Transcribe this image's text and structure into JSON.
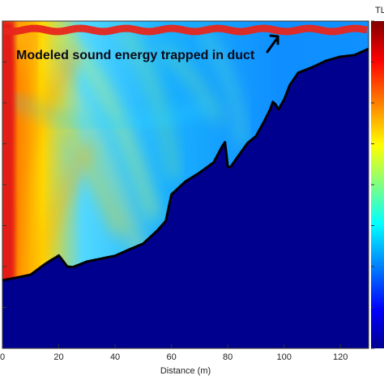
{
  "chart_data": {
    "type": "heatmap",
    "title": "",
    "xlabel": "Distance (m)",
    "ylabel": "",
    "xlim": [
      0,
      130
    ],
    "x_ticks": [
      0,
      20,
      40,
      60,
      80,
      100,
      120
    ],
    "grid": false,
    "colormap": [
      "#00008f",
      "#0000ff",
      "#0080ff",
      "#00ffff",
      "#80ff80",
      "#ffff00",
      "#ff8000",
      "#ff0000",
      "#800000"
    ],
    "colorbar": {
      "title": "TL",
      "position": "right"
    },
    "seabed_color": "#00008f",
    "duct_energy_color": "#e8261c",
    "annotation": {
      "text": "Modeled sound energy trapped in duct",
      "arrow_target_x": 98
    },
    "bottom_profile": {
      "x": [
        0,
        5,
        10,
        15,
        17,
        19,
        20,
        21,
        23,
        25,
        30,
        40,
        45,
        50,
        55,
        58,
        60,
        65,
        70,
        75,
        78,
        79,
        80,
        81,
        83,
        87,
        90,
        93,
        95,
        96,
        97,
        98,
        100,
        102,
        105,
        110,
        115,
        120,
        125,
        130
      ],
      "depth_frac": [
        0.792,
        0.784,
        0.775,
        0.743,
        0.732,
        0.722,
        0.716,
        0.727,
        0.75,
        0.752,
        0.735,
        0.717,
        0.698,
        0.68,
        0.64,
        0.611,
        0.53,
        0.49,
        0.463,
        0.432,
        0.383,
        0.37,
        0.445,
        0.446,
        0.421,
        0.373,
        0.352,
        0.305,
        0.271,
        0.247,
        0.255,
        0.27,
        0.24,
        0.196,
        0.158,
        0.141,
        0.121,
        0.109,
        0.104,
        0.085
      ]
    }
  }
}
